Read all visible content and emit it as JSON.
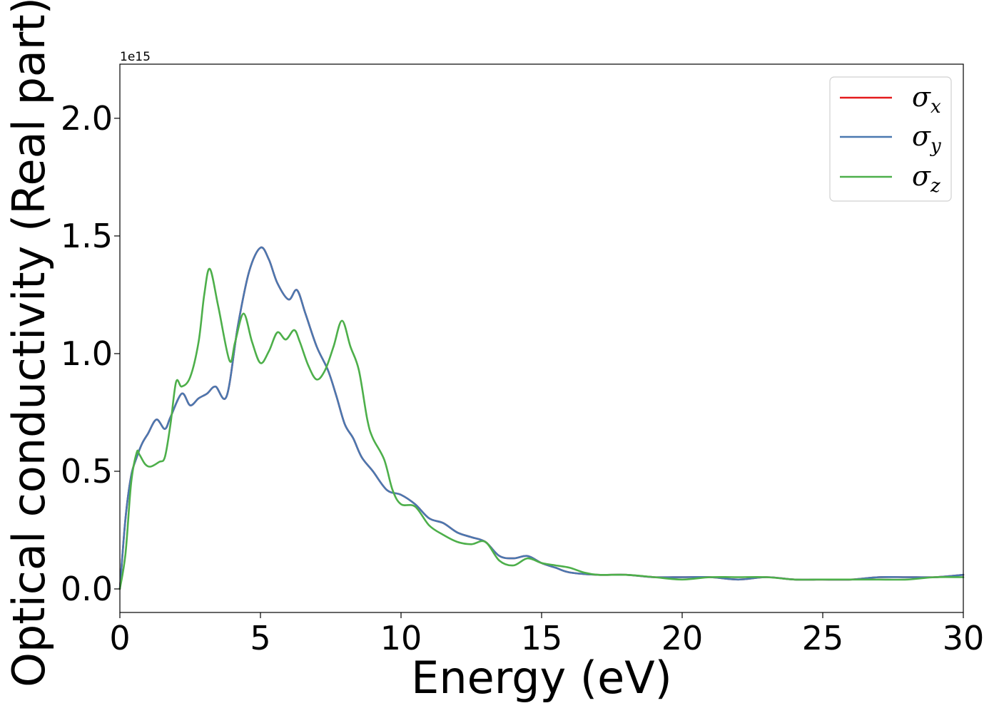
{
  "chart_data": {
    "type": "line",
    "xlabel": "Energy (eV)",
    "ylabel": "Optical conductivity (Real part)",
    "y_offset_text": "1e15",
    "y_scale_factor": 1000000000000000.0,
    "xlim": [
      0,
      30
    ],
    "ylim": [
      -0.1,
      2.23
    ],
    "x_ticks": [
      0,
      5,
      10,
      15,
      20,
      25,
      30
    ],
    "y_ticks": [
      0.0,
      0.5,
      1.0,
      1.5,
      2.0
    ],
    "x_tick_labels": [
      "0",
      "5",
      "10",
      "15",
      "20",
      "25",
      "30"
    ],
    "y_tick_labels": [
      "0.0",
      "0.5",
      "1.0",
      "1.5",
      "2.0"
    ],
    "grid": false,
    "legend_position": "top-right",
    "series": [
      {
        "name": "σx",
        "legend_symbol": "σ",
        "legend_subscript": "x",
        "color": "#e41a1c",
        "x": [
          0,
          0.2,
          0.4,
          0.6,
          0.8,
          1.0,
          1.3,
          1.6,
          1.8,
          2.2,
          2.5,
          2.8,
          3.1,
          3.4,
          3.8,
          4.2,
          4.6,
          5.0,
          5.3,
          5.6,
          6.0,
          6.3,
          6.6,
          7.0,
          7.4,
          7.7,
          8.0,
          8.3,
          8.6,
          9.0,
          9.5,
          10.0,
          10.5,
          11.0,
          11.5,
          12.0,
          12.5,
          13.0,
          13.5,
          14.0,
          14.5,
          15.0,
          15.5,
          16.0,
          17.0,
          18.0,
          19.0,
          20.0,
          21.0,
          22.0,
          23.0,
          24.0,
          25.0,
          26.0,
          27.0,
          28.0,
          29.0,
          30.0
        ],
        "values": [
          0.0,
          0.3,
          0.48,
          0.56,
          0.62,
          0.66,
          0.72,
          0.68,
          0.73,
          0.83,
          0.78,
          0.81,
          0.83,
          0.86,
          0.82,
          1.12,
          1.35,
          1.45,
          1.4,
          1.3,
          1.23,
          1.27,
          1.17,
          1.03,
          0.93,
          0.82,
          0.7,
          0.64,
          0.56,
          0.5,
          0.42,
          0.4,
          0.36,
          0.3,
          0.28,
          0.24,
          0.22,
          0.2,
          0.14,
          0.13,
          0.14,
          0.11,
          0.09,
          0.07,
          0.06,
          0.06,
          0.05,
          0.05,
          0.05,
          0.04,
          0.05,
          0.04,
          0.04,
          0.04,
          0.05,
          0.05,
          0.05,
          0.06
        ]
      },
      {
        "name": "σy",
        "legend_symbol": "σ",
        "legend_subscript": "y",
        "color": "#4a78b0",
        "x": [
          0,
          0.2,
          0.4,
          0.6,
          0.8,
          1.0,
          1.3,
          1.6,
          1.8,
          2.2,
          2.5,
          2.8,
          3.1,
          3.4,
          3.8,
          4.2,
          4.6,
          5.0,
          5.3,
          5.6,
          6.0,
          6.3,
          6.6,
          7.0,
          7.4,
          7.7,
          8.0,
          8.3,
          8.6,
          9.0,
          9.5,
          10.0,
          10.5,
          11.0,
          11.5,
          12.0,
          12.5,
          13.0,
          13.5,
          14.0,
          14.5,
          15.0,
          15.5,
          16.0,
          17.0,
          18.0,
          19.0,
          20.0,
          21.0,
          22.0,
          23.0,
          24.0,
          25.0,
          26.0,
          27.0,
          28.0,
          29.0,
          30.0
        ],
        "values": [
          0.0,
          0.3,
          0.48,
          0.56,
          0.62,
          0.66,
          0.72,
          0.68,
          0.73,
          0.83,
          0.78,
          0.81,
          0.83,
          0.86,
          0.82,
          1.12,
          1.35,
          1.45,
          1.4,
          1.3,
          1.23,
          1.27,
          1.17,
          1.03,
          0.93,
          0.82,
          0.7,
          0.64,
          0.56,
          0.5,
          0.42,
          0.4,
          0.36,
          0.3,
          0.28,
          0.24,
          0.22,
          0.2,
          0.14,
          0.13,
          0.14,
          0.11,
          0.09,
          0.07,
          0.06,
          0.06,
          0.05,
          0.05,
          0.05,
          0.04,
          0.05,
          0.04,
          0.04,
          0.04,
          0.05,
          0.05,
          0.05,
          0.06
        ]
      },
      {
        "name": "σz",
        "legend_symbol": "σ",
        "legend_subscript": "z",
        "color": "#4daf4a",
        "x": [
          0,
          0.2,
          0.4,
          0.6,
          0.7,
          0.9,
          1.1,
          1.4,
          1.6,
          1.8,
          2.0,
          2.2,
          2.5,
          2.8,
          3.0,
          3.2,
          3.5,
          3.9,
          4.1,
          4.4,
          4.7,
          5.0,
          5.3,
          5.6,
          5.9,
          6.2,
          6.4,
          6.7,
          7.0,
          7.3,
          7.6,
          7.9,
          8.2,
          8.5,
          8.8,
          9.0,
          9.4,
          9.7,
          10.0,
          10.5,
          11.0,
          11.5,
          12.0,
          12.5,
          13.0,
          13.5,
          14.0,
          14.5,
          15.0,
          15.5,
          16.0,
          16.5,
          17.0,
          18.0,
          19.0,
          20.0,
          21.0,
          22.0,
          23.0,
          24.0,
          25.0,
          26.0,
          27.0,
          28.0,
          29.0,
          30.0
        ],
        "values": [
          0.0,
          0.15,
          0.45,
          0.58,
          0.57,
          0.53,
          0.52,
          0.54,
          0.56,
          0.7,
          0.88,
          0.86,
          0.9,
          1.05,
          1.25,
          1.36,
          1.2,
          0.97,
          1.05,
          1.17,
          1.05,
          0.96,
          1.01,
          1.09,
          1.06,
          1.1,
          1.05,
          0.95,
          0.89,
          0.93,
          1.03,
          1.14,
          1.03,
          0.93,
          0.72,
          0.64,
          0.55,
          0.42,
          0.36,
          0.35,
          0.27,
          0.23,
          0.2,
          0.19,
          0.2,
          0.12,
          0.1,
          0.13,
          0.11,
          0.1,
          0.09,
          0.07,
          0.06,
          0.06,
          0.05,
          0.04,
          0.05,
          0.05,
          0.05,
          0.04,
          0.04,
          0.04,
          0.04,
          0.04,
          0.05,
          0.05
        ]
      }
    ]
  }
}
